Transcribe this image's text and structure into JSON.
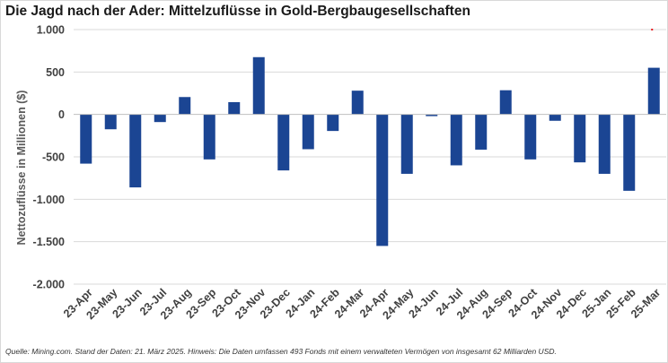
{
  "title": "Die Jagd nach der Ader: Mittelzuflüsse in Gold-Bergbaugesellschaften",
  "source_note": "Quelle: Mining.com. Stand der Daten: 21. März 2025. Hinweis: Die Daten umfassen 493 Fonds mit einem verwalteten Vermögen von insgesamt 62 Milliarden USD.",
  "colors": {
    "bar": "#1b4593",
    "grid": "#d9d9d9",
    "axis": "#bfbfbf",
    "marker": "#e8151b"
  },
  "chart_data": {
    "type": "bar",
    "title": "Die Jagd nach der Ader: Mittelzuflüsse in Gold-Bergbaugesellschaften",
    "xlabel": "",
    "ylabel": "Nettozuflüsse in Millionen ($)",
    "ylim": [
      -2000,
      1000
    ],
    "yticks": [
      1000,
      500,
      0,
      -500,
      -1000,
      -1500,
      -2000
    ],
    "ytick_labels": [
      "1.000",
      "500",
      "0",
      "-500",
      "-1.000",
      "-1.500",
      "-2.000"
    ],
    "grid": true,
    "categories": [
      "23-Apr",
      "23-May",
      "23-Jun",
      "23-Jul",
      "23-Aug",
      "23-Sep",
      "23-Oct",
      "23-Nov",
      "23-Dec",
      "24-Jan",
      "24-Feb",
      "24-Mar",
      "24-Apr",
      "24-May",
      "24-Jun",
      "24-Jul",
      "24-Aug",
      "24-Sep",
      "24-Oct",
      "24-Nov",
      "24-Dec",
      "25-Jan",
      "25-Feb",
      "25-Mar"
    ],
    "values": [
      -580,
      -175,
      -860,
      -90,
      205,
      -530,
      145,
      675,
      -660,
      -410,
      -195,
      280,
      -1550,
      -700,
      -20,
      -600,
      -415,
      285,
      -530,
      -75,
      -565,
      -700,
      -900,
      550
    ],
    "annotations": [
      {
        "type": "marker",
        "category": "25-Mar",
        "value": 1000,
        "color": "#e8151b"
      }
    ]
  }
}
